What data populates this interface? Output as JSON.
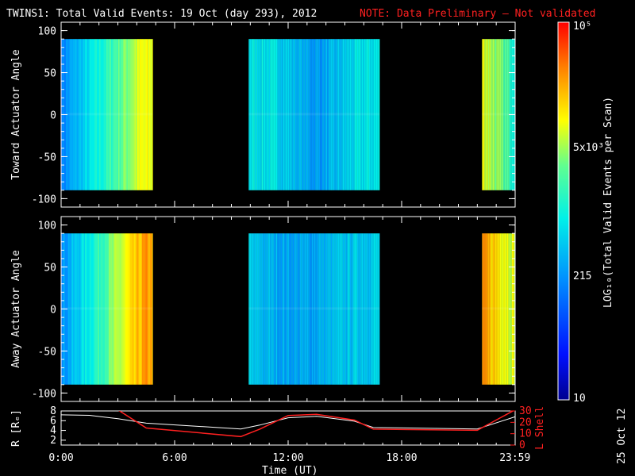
{
  "header": {
    "title": "TWINS1: Total Valid Events: 19 Oct (day 293), 2012",
    "note": "NOTE: Data Preliminary — Not validated"
  },
  "colorbar": {
    "label": "LOG₁₀(Total Valid Events per Scan)",
    "ticks": [
      "10⁵",
      "5x10³",
      "215",
      "10"
    ]
  },
  "footer": {
    "stamp": "25 Oct 12",
    "xlabel": "Time (UT)"
  },
  "chart_data": [
    {
      "type": "heatmap",
      "ylabel": "Toward Actuator Angle",
      "ylim": [
        -110,
        110
      ],
      "yticks": [
        100,
        50,
        0,
        -50,
        -100
      ],
      "x_units": "hours UT",
      "xlim": [
        0,
        24
      ],
      "color_scale": "log10, 10 to 10^5",
      "data_intervals": [
        {
          "start": "0:00",
          "end": "4:50",
          "trend": "blue (~200) rising to yellow (~5000)"
        },
        {
          "start": "9:55",
          "end": "16:50",
          "trend": "cyan (~800) with blue (~200) streaks near 12:00-15:00"
        },
        {
          "start": "22:15",
          "end": "23:59",
          "trend": "yellow (~5000) falling to cyan (~1500)"
        }
      ],
      "angle_range": [
        -90,
        90
      ]
    },
    {
      "type": "heatmap",
      "ylabel": "Away Actuator Angle",
      "ylim": [
        -110,
        110
      ],
      "yticks": [
        100,
        50,
        0,
        -50,
        -100
      ],
      "x_units": "hours UT",
      "xlim": [
        0,
        24
      ],
      "color_scale": "log10, 10 to 10^5",
      "data_intervals": [
        {
          "start": "0:00",
          "end": "4:50",
          "trend": "blue (~200) rising to orange (~20000)"
        },
        {
          "start": "9:55",
          "end": "16:50",
          "trend": "cyan/blue (~300-800) streaked"
        },
        {
          "start": "22:15",
          "end": "23:59",
          "trend": "orange (~20000) falling to yellow (~5000)"
        }
      ],
      "angle_range": [
        -90,
        90
      ]
    },
    {
      "type": "line",
      "ylabel": "R [Rₑ]",
      "y2label": "L Shell",
      "ylim": [
        1,
        8
      ],
      "yticks": [
        2,
        4,
        6,
        8
      ],
      "y2lim": [
        0,
        30
      ],
      "y2ticks": [
        0,
        10,
        20,
        30
      ],
      "xticklabels": [
        "0:00",
        "6:00",
        "12:00",
        "18:00",
        "23:59"
      ],
      "x": [
        0,
        1.5,
        3,
        4.5,
        9.5,
        10.5,
        12,
        13.5,
        15.5,
        16.5,
        22,
        23.99
      ],
      "series": [
        {
          "name": "R",
          "color": "#ffffff",
          "values": [
            7.2,
            7.1,
            6.4,
            5.5,
            4.3,
            5.1,
            6.6,
            6.9,
            5.9,
            4.6,
            4.3,
            6.8
          ]
        },
        {
          "name": "L Shell",
          "color": "#ff2020",
          "values": [
            null,
            null,
            31,
            15,
            7.5,
            14,
            26,
            27,
            22,
            14,
            13,
            31
          ]
        }
      ]
    }
  ]
}
